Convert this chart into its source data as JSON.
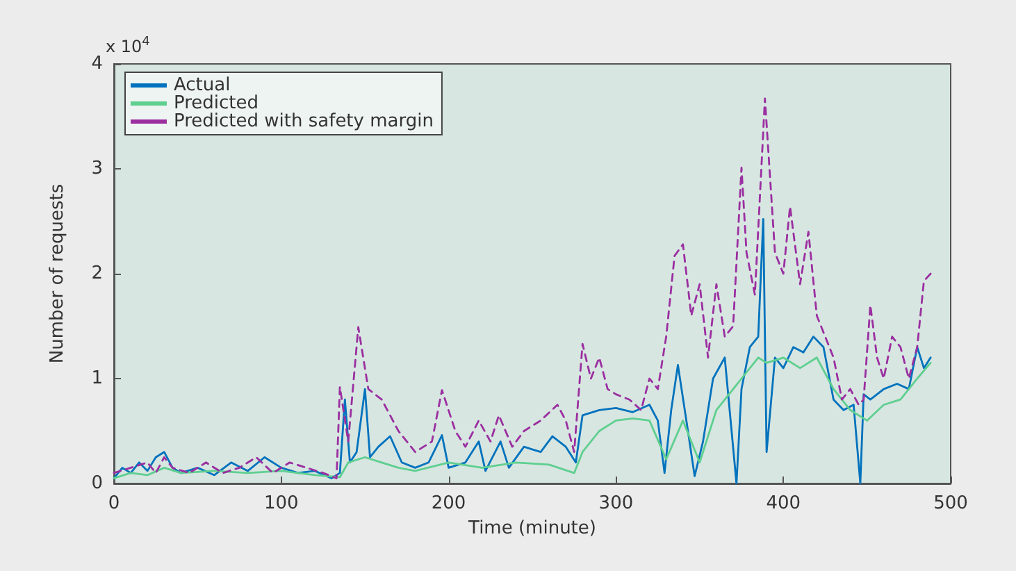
{
  "chart_data": {
    "type": "line",
    "xlabel": "Time (minute)",
    "ylabel": "Number of requests",
    "annotations": [
      "x 10$^{4}$"
    ],
    "xlim": [
      0,
      500
    ],
    "xticks": [
      0,
      100,
      200,
      300,
      400,
      500
    ],
    "ylim": [
      0,
      4
    ],
    "yticks": [
      0,
      1,
      2,
      3,
      4
    ],
    "grid": false,
    "legend": "top left",
    "marker": "none",
    "series": [
      {
        "name": "Actual",
        "color": "#0072bd",
        "line_style": "solid",
        "x": [
          0,
          5,
          10,
          15,
          20,
          25,
          30,
          35,
          40,
          50,
          60,
          70,
          80,
          90,
          100,
          110,
          120,
          130,
          135,
          138,
          141,
          145,
          150,
          153,
          158,
          165,
          172,
          180,
          188,
          196,
          200,
          210,
          218,
          222,
          231,
          236,
          245,
          255,
          262,
          270,
          276,
          280,
          290,
          300,
          310,
          320,
          325,
          329,
          333,
          337,
          343,
          347,
          352,
          358,
          365,
          372,
          375,
          380,
          385,
          388,
          390,
          395,
          400,
          406,
          412,
          418,
          424,
          430,
          436,
          442,
          446,
          448,
          452,
          460,
          468,
          475,
          480,
          484,
          488
        ],
        "values": [
          0.05,
          0.15,
          0.1,
          0.2,
          0.12,
          0.25,
          0.3,
          0.15,
          0.1,
          0.15,
          0.08,
          0.2,
          0.12,
          0.25,
          0.15,
          0.1,
          0.12,
          0.05,
          0.1,
          0.8,
          0.2,
          0.3,
          0.9,
          0.25,
          0.35,
          0.45,
          0.2,
          0.15,
          0.2,
          0.46,
          0.15,
          0.2,
          0.4,
          0.12,
          0.4,
          0.15,
          0.35,
          0.3,
          0.45,
          0.35,
          0.2,
          0.65,
          0.7,
          0.72,
          0.68,
          0.75,
          0.6,
          0.1,
          0.7,
          1.13,
          0.5,
          0.07,
          0.4,
          1.0,
          1.2,
          0.0,
          0.9,
          1.3,
          1.4,
          2.52,
          0.3,
          1.2,
          1.1,
          1.3,
          1.25,
          1.4,
          1.3,
          0.8,
          0.7,
          0.75,
          0.0,
          0.85,
          0.8,
          0.9,
          0.95,
          0.9,
          1.3,
          1.1,
          1.2
        ]
      },
      {
        "name": "Predicted",
        "color": "#5fcf90",
        "line_style": "solid",
        "x": [
          0,
          10,
          20,
          30,
          40,
          60,
          80,
          100,
          120,
          135,
          140,
          150,
          160,
          170,
          180,
          200,
          220,
          240,
          260,
          275,
          280,
          290,
          300,
          310,
          320,
          330,
          340,
          350,
          360,
          370,
          375,
          385,
          390,
          400,
          410,
          420,
          430,
          440,
          450,
          460,
          470,
          480,
          488
        ],
        "values": [
          0.05,
          0.1,
          0.08,
          0.15,
          0.1,
          0.12,
          0.1,
          0.12,
          0.08,
          0.06,
          0.2,
          0.25,
          0.2,
          0.15,
          0.12,
          0.2,
          0.15,
          0.2,
          0.18,
          0.1,
          0.3,
          0.5,
          0.6,
          0.62,
          0.6,
          0.23,
          0.6,
          0.2,
          0.7,
          0.9,
          1.0,
          1.2,
          1.15,
          1.2,
          1.1,
          1.2,
          0.9,
          0.7,
          0.6,
          0.75,
          0.8,
          1.0,
          1.15
        ]
      },
      {
        "name": "Predicted with safety margin",
        "color": "#9b2fa0",
        "line_style": "dashed",
        "x": [
          0,
          10,
          20,
          25,
          30,
          35,
          45,
          55,
          65,
          75,
          85,
          95,
          105,
          115,
          125,
          133,
          135,
          140,
          146,
          152,
          160,
          170,
          180,
          190,
          196,
          204,
          210,
          218,
          225,
          230,
          238,
          245,
          255,
          265,
          270,
          275,
          280,
          285,
          290,
          295,
          300,
          308,
          315,
          320,
          325,
          330,
          335,
          340,
          345,
          350,
          355,
          360,
          365,
          370,
          375,
          378,
          383,
          389,
          395,
          400,
          404,
          410,
          415,
          420,
          425,
          430,
          435,
          440,
          445,
          448,
          452,
          456,
          460,
          465,
          470,
          475,
          480,
          484,
          488
        ],
        "values": [
          0.1,
          0.15,
          0.2,
          0.1,
          0.25,
          0.15,
          0.1,
          0.2,
          0.1,
          0.15,
          0.25,
          0.1,
          0.2,
          0.15,
          0.1,
          0.05,
          0.92,
          0.4,
          1.49,
          0.9,
          0.8,
          0.5,
          0.3,
          0.4,
          0.89,
          0.5,
          0.35,
          0.6,
          0.4,
          0.65,
          0.35,
          0.5,
          0.6,
          0.75,
          0.6,
          0.3,
          1.33,
          1.0,
          1.2,
          0.9,
          0.85,
          0.8,
          0.7,
          1.0,
          0.9,
          1.4,
          2.17,
          2.28,
          1.6,
          1.9,
          1.2,
          1.9,
          1.4,
          1.5,
          3.01,
          2.2,
          1.8,
          3.67,
          2.2,
          2.0,
          2.64,
          1.9,
          2.4,
          1.6,
          1.4,
          1.2,
          0.8,
          0.9,
          0.75,
          0.8,
          1.7,
          1.2,
          1.0,
          1.4,
          1.3,
          1.0,
          1.3,
          1.93,
          2.0
        ]
      }
    ]
  }
}
